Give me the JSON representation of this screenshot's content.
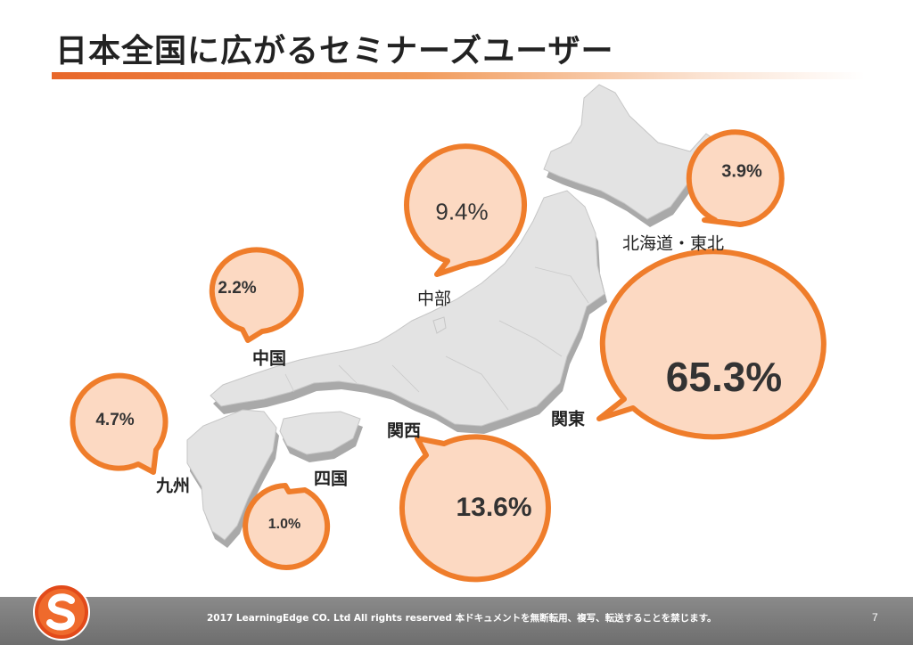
{
  "title": "日本全国に広がるセミナーズユーザー",
  "colors": {
    "bubble_fill": "#fcd9c2",
    "bubble_stroke": "#ef7d2b",
    "map_fill": "#e3e3e3",
    "map_shadow": "#a9a9a9",
    "accent": "#e8672a"
  },
  "regions": [
    {
      "name": "北海道・東北",
      "share": "3.9%",
      "value": 3.9
    },
    {
      "name": "中部",
      "share": "9.4%",
      "value": 9.4
    },
    {
      "name": "中国",
      "share": "2.2%",
      "value": 2.2
    },
    {
      "name": "九州",
      "share": "4.7%",
      "value": 4.7
    },
    {
      "name": "関西",
      "share": "13.6%",
      "value": 13.6
    },
    {
      "name": "四国",
      "share": "1.0%",
      "value": 1.0
    },
    {
      "name": "関東",
      "share": "65.3%",
      "value": 65.3
    }
  ],
  "footer": {
    "copyright": "2017 LearningEdge CO. Ltd  All rights reserved  本ドキュメントを無断転用、複写、転送することを禁じます。",
    "page_number": "7"
  },
  "logo": {
    "letter": "S",
    "icon": "s-logo-icon"
  }
}
